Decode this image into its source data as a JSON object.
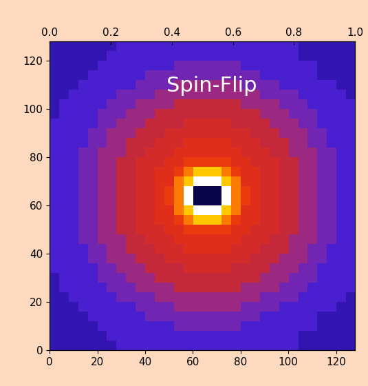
{
  "chart_data": {
    "type": "heatmap",
    "annotations": [
      "Spin-Flip"
    ],
    "xlim": [
      0,
      128
    ],
    "ylim": [
      0,
      128
    ],
    "xticks": [
      0,
      20,
      40,
      60,
      80,
      100,
      120
    ],
    "yticks": [
      0,
      20,
      40,
      60,
      80,
      100,
      120
    ],
    "x2lim": [
      0,
      1
    ],
    "x2ticks": [
      {
        "value": 0,
        "label": "0.0"
      },
      {
        "value": 0.2,
        "label": "0.2"
      },
      {
        "value": 0.4,
        "label": "0.4"
      },
      {
        "value": 0.6,
        "label": "0.6"
      },
      {
        "value": 0.8,
        "label": "0.8"
      },
      {
        "value": 1,
        "label": "1.0"
      }
    ],
    "zlim": [
      0,
      100
    ],
    "cells": [
      [
        22,
        22,
        22,
        22,
        22,
        22,
        22,
        27,
        27,
        27,
        27,
        27,
        27,
        27,
        27,
        27,
        27,
        27,
        27,
        27,
        27,
        27,
        27,
        27,
        27,
        27,
        22,
        22,
        22,
        22,
        22,
        22
      ],
      [
        22,
        22,
        22,
        22,
        22,
        22,
        27,
        27,
        27,
        27,
        27,
        27,
        27,
        27,
        27,
        27,
        27,
        27,
        27,
        27,
        27,
        27,
        27,
        27,
        27,
        27,
        22,
        22,
        22,
        22,
        22,
        22
      ],
      [
        22,
        22,
        22,
        22,
        22,
        27,
        27,
        27,
        27,
        27,
        27,
        27,
        27,
        32,
        32,
        32,
        32,
        32,
        32,
        32,
        27,
        27,
        27,
        27,
        27,
        27,
        27,
        27,
        22,
        22,
        22,
        22
      ],
      [
        22,
        22,
        22,
        22,
        27,
        27,
        27,
        27,
        27,
        27,
        32,
        32,
        32,
        32,
        32,
        32,
        32,
        32,
        32,
        32,
        32,
        32,
        27,
        27,
        27,
        27,
        27,
        27,
        22,
        22,
        22,
        22
      ],
      [
        22,
        22,
        22,
        27,
        27,
        27,
        27,
        27,
        27,
        32,
        32,
        32,
        32,
        38,
        38,
        38,
        38,
        38,
        38,
        38,
        32,
        32,
        32,
        32,
        27,
        27,
        27,
        27,
        27,
        27,
        22,
        22
      ],
      [
        22,
        22,
        27,
        27,
        27,
        27,
        27,
        32,
        32,
        32,
        32,
        38,
        38,
        38,
        38,
        38,
        38,
        38,
        38,
        38,
        38,
        38,
        32,
        32,
        32,
        32,
        27,
        27,
        27,
        27,
        27,
        22
      ],
      [
        22,
        27,
        27,
        27,
        27,
        27,
        32,
        32,
        32,
        38,
        38,
        38,
        38,
        45,
        45,
        45,
        45,
        45,
        45,
        45,
        38,
        38,
        38,
        38,
        32,
        32,
        32,
        27,
        27,
        27,
        27,
        27
      ],
      [
        22,
        27,
        27,
        27,
        27,
        32,
        32,
        32,
        38,
        38,
        38,
        45,
        45,
        45,
        45,
        45,
        45,
        45,
        45,
        45,
        45,
        45,
        38,
        38,
        38,
        32,
        32,
        32,
        27,
        27,
        27,
        27
      ],
      [
        27,
        27,
        27,
        27,
        27,
        32,
        32,
        38,
        38,
        38,
        45,
        45,
        45,
        45,
        50,
        50,
        50,
        50,
        50,
        45,
        45,
        45,
        45,
        38,
        38,
        38,
        32,
        32,
        27,
        27,
        27,
        27
      ],
      [
        27,
        27,
        27,
        27,
        32,
        32,
        38,
        38,
        38,
        45,
        45,
        45,
        50,
        50,
        50,
        50,
        50,
        50,
        50,
        50,
        50,
        45,
        45,
        45,
        38,
        38,
        38,
        32,
        32,
        27,
        27,
        27
      ],
      [
        27,
        27,
        27,
        27,
        32,
        32,
        38,
        38,
        45,
        45,
        45,
        50,
        50,
        50,
        55,
        55,
        55,
        55,
        55,
        50,
        50,
        50,
        45,
        45,
        45,
        38,
        38,
        32,
        32,
        27,
        27,
        27
      ],
      [
        27,
        27,
        27,
        32,
        32,
        38,
        38,
        38,
        45,
        45,
        50,
        50,
        50,
        55,
        55,
        55,
        55,
        55,
        55,
        55,
        50,
        50,
        50,
        45,
        45,
        38,
        38,
        38,
        32,
        32,
        27,
        27
      ],
      [
        27,
        27,
        27,
        32,
        32,
        38,
        38,
        45,
        45,
        50,
        50,
        50,
        55,
        55,
        60,
        60,
        60,
        60,
        60,
        55,
        55,
        50,
        50,
        50,
        45,
        45,
        38,
        38,
        32,
        32,
        27,
        27
      ],
      [
        27,
        27,
        27,
        32,
        32,
        38,
        38,
        45,
        45,
        50,
        50,
        55,
        55,
        60,
        72,
        85,
        85,
        85,
        72,
        60,
        55,
        55,
        50,
        50,
        45,
        45,
        38,
        38,
        32,
        32,
        27,
        27
      ],
      [
        27,
        27,
        27,
        32,
        32,
        38,
        38,
        45,
        45,
        50,
        50,
        55,
        55,
        72,
        85,
        100,
        100,
        100,
        85,
        72,
        55,
        55,
        50,
        50,
        45,
        45,
        38,
        38,
        32,
        32,
        27,
        27
      ],
      [
        27,
        27,
        27,
        32,
        32,
        38,
        38,
        45,
        45,
        50,
        50,
        55,
        60,
        72,
        100,
        8,
        8,
        8,
        100,
        72,
        60,
        55,
        50,
        50,
        45,
        45,
        38,
        38,
        32,
        32,
        27,
        27
      ],
      [
        27,
        27,
        27,
        32,
        32,
        38,
        38,
        45,
        45,
        50,
        50,
        55,
        60,
        72,
        100,
        8,
        8,
        8,
        100,
        72,
        60,
        55,
        50,
        50,
        45,
        45,
        38,
        38,
        32,
        32,
        27,
        27
      ],
      [
        27,
        27,
        27,
        32,
        32,
        38,
        38,
        45,
        45,
        50,
        50,
        55,
        55,
        72,
        85,
        100,
        100,
        100,
        85,
        72,
        55,
        55,
        50,
        50,
        45,
        45,
        38,
        38,
        32,
        32,
        27,
        27
      ],
      [
        27,
        27,
        27,
        32,
        32,
        38,
        38,
        45,
        45,
        50,
        50,
        55,
        55,
        60,
        72,
        85,
        85,
        85,
        72,
        60,
        55,
        55,
        50,
        50,
        45,
        45,
        38,
        38,
        32,
        32,
        27,
        27
      ],
      [
        27,
        27,
        27,
        32,
        32,
        38,
        38,
        45,
        45,
        50,
        50,
        50,
        55,
        55,
        60,
        60,
        60,
        60,
        60,
        55,
        55,
        50,
        50,
        50,
        45,
        45,
        38,
        38,
        32,
        32,
        27,
        27
      ],
      [
        27,
        27,
        27,
        32,
        32,
        38,
        38,
        38,
        45,
        45,
        50,
        50,
        50,
        55,
        55,
        55,
        55,
        55,
        55,
        55,
        50,
        50,
        50,
        45,
        45,
        38,
        38,
        38,
        32,
        32,
        27,
        27
      ],
      [
        27,
        27,
        27,
        27,
        32,
        32,
        38,
        38,
        45,
        45,
        45,
        50,
        50,
        50,
        55,
        55,
        55,
        55,
        55,
        50,
        50,
        50,
        45,
        45,
        45,
        38,
        38,
        32,
        32,
        27,
        27,
        27
      ],
      [
        27,
        27,
        27,
        27,
        32,
        32,
        38,
        38,
        38,
        45,
        45,
        45,
        50,
        50,
        50,
        50,
        50,
        50,
        50,
        50,
        50,
        45,
        45,
        45,
        38,
        38,
        38,
        32,
        32,
        27,
        27,
        27
      ],
      [
        27,
        27,
        27,
        27,
        27,
        32,
        32,
        38,
        38,
        38,
        45,
        45,
        45,
        45,
        50,
        50,
        50,
        50,
        50,
        45,
        45,
        45,
        45,
        38,
        38,
        38,
        32,
        32,
        27,
        27,
        27,
        27
      ],
      [
        22,
        27,
        27,
        27,
        27,
        32,
        32,
        32,
        38,
        38,
        38,
        45,
        45,
        45,
        45,
        45,
        45,
        45,
        45,
        45,
        45,
        45,
        38,
        38,
        38,
        32,
        32,
        32,
        27,
        27,
        27,
        27
      ],
      [
        22,
        27,
        27,
        27,
        27,
        27,
        32,
        32,
        32,
        38,
        38,
        38,
        38,
        45,
        45,
        45,
        45,
        45,
        45,
        45,
        38,
        38,
        38,
        38,
        32,
        32,
        32,
        27,
        27,
        27,
        27,
        27
      ],
      [
        22,
        22,
        27,
        27,
        27,
        27,
        27,
        32,
        32,
        32,
        32,
        38,
        38,
        38,
        38,
        38,
        38,
        38,
        38,
        38,
        38,
        38,
        32,
        32,
        32,
        32,
        27,
        27,
        27,
        27,
        27,
        22
      ],
      [
        22,
        22,
        22,
        27,
        27,
        27,
        27,
        27,
        27,
        32,
        32,
        32,
        32,
        38,
        38,
        38,
        38,
        38,
        38,
        38,
        32,
        32,
        32,
        32,
        27,
        27,
        27,
        27,
        27,
        27,
        22,
        22
      ],
      [
        22,
        22,
        22,
        22,
        27,
        27,
        27,
        27,
        27,
        27,
        32,
        32,
        32,
        32,
        32,
        32,
        32,
        32,
        32,
        32,
        32,
        32,
        27,
        27,
        27,
        27,
        27,
        27,
        22,
        22,
        22,
        22
      ],
      [
        22,
        22,
        22,
        22,
        22,
        27,
        27,
        27,
        27,
        27,
        27,
        27,
        27,
        32,
        32,
        32,
        32,
        32,
        32,
        32,
        27,
        27,
        27,
        27,
        27,
        27,
        27,
        27,
        22,
        22,
        22,
        22
      ],
      [
        22,
        22,
        22,
        22,
        22,
        22,
        27,
        27,
        27,
        27,
        27,
        27,
        27,
        27,
        27,
        27,
        27,
        27,
        27,
        27,
        27,
        27,
        27,
        27,
        27,
        27,
        22,
        22,
        22,
        22,
        22,
        22
      ],
      [
        22,
        22,
        22,
        22,
        22,
        22,
        22,
        27,
        27,
        27,
        27,
        27,
        27,
        27,
        27,
        27,
        27,
        27,
        27,
        27,
        27,
        27,
        27,
        27,
        27,
        27,
        22,
        22,
        22,
        22,
        22,
        22
      ]
    ]
  }
}
